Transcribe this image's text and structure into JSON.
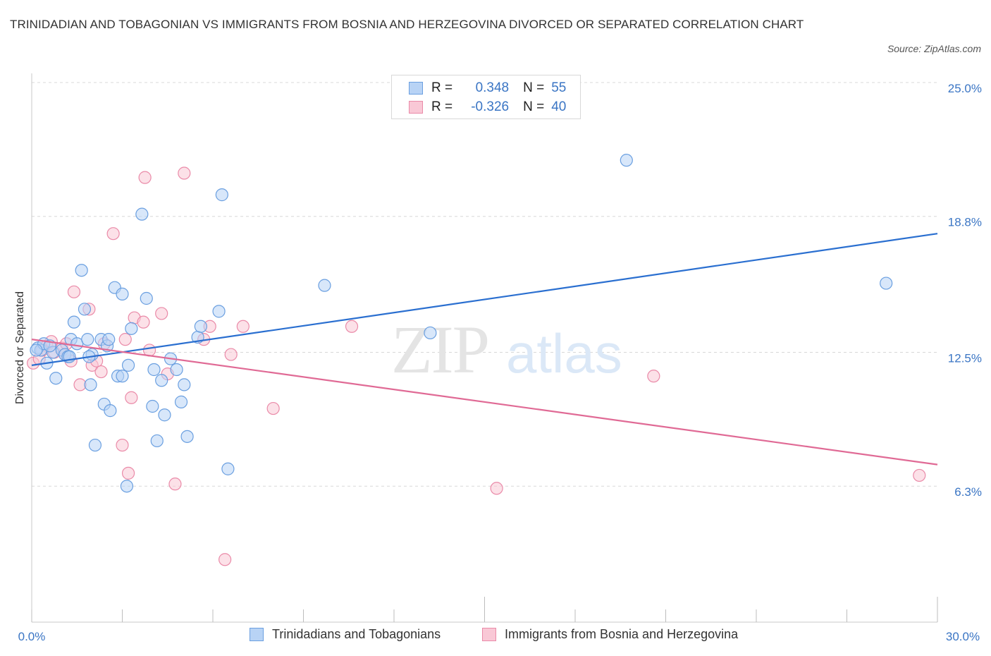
{
  "title": "TRINIDADIAN AND TOBAGONIAN VS IMMIGRANTS FROM BOSNIA AND HERZEGOVINA DIVORCED OR SEPARATED CORRELATION CHART",
  "source": "Source: ZipAtlas.com",
  "watermark": {
    "zip": "ZIP",
    "atlas": "atlas"
  },
  "legend": {
    "rows": [
      {
        "r_label": "R =",
        "r_value": "0.348",
        "n_label": "N =",
        "n_value": "55"
      },
      {
        "r_label": "R =",
        "r_value": "-0.326",
        "n_label": "N =",
        "n_value": "40"
      }
    ]
  },
  "bottom_legend": {
    "series1": "Trinidadians and Tobagonians",
    "series2": "Immigrants from Bosnia and Herzegovina"
  },
  "colors": {
    "blue_fill": "#b8d3f5",
    "blue_stroke": "#6a9fe0",
    "blue_line": "#2a6fd0",
    "pink_fill": "#f9c8d6",
    "pink_stroke": "#ea8aa8",
    "pink_line": "#e06a95",
    "tick_text": "#3a75c4",
    "grid": "#d8d8d8"
  },
  "chart_data": {
    "type": "scatter",
    "title": "TRINIDADIAN AND TOBAGONIAN VS IMMIGRANTS FROM BOSNIA AND HERZEGOVINA DIVORCED OR SEPARATED CORRELATION CHART",
    "xlabel": "",
    "ylabel": "Divorced or Separated",
    "xlim": [
      0,
      30
    ],
    "ylim": [
      0,
      25
    ],
    "x_tick_labels": [
      "0.0%",
      "30.0%"
    ],
    "y_ticks": [
      {
        "value": 25.0,
        "label": "25.0%"
      },
      {
        "value": 18.8,
        "label": "18.8%"
      },
      {
        "value": 12.5,
        "label": "12.5%"
      },
      {
        "value": 6.3,
        "label": "6.3%"
      }
    ],
    "grid": true,
    "legend_position": "top-center",
    "series": [
      {
        "name": "Trinidadians and Tobagonians",
        "color": "#6a9fe0",
        "trend": {
          "x": [
            0,
            30
          ],
          "y": [
            11.9,
            18.0
          ]
        },
        "points": [
          [
            0.2,
            12.7
          ],
          [
            0.3,
            12.6
          ],
          [
            0.4,
            12.9
          ],
          [
            0.5,
            12.0
          ],
          [
            0.7,
            12.5
          ],
          [
            0.8,
            11.3
          ],
          [
            1.0,
            12.6
          ],
          [
            1.1,
            12.4
          ],
          [
            1.2,
            12.3
          ],
          [
            1.3,
            13.1
          ],
          [
            1.4,
            13.9
          ],
          [
            1.5,
            12.9
          ],
          [
            1.65,
            16.3
          ],
          [
            1.75,
            14.5
          ],
          [
            1.85,
            13.1
          ],
          [
            1.95,
            11.0
          ],
          [
            2.0,
            12.4
          ],
          [
            2.1,
            8.2
          ],
          [
            2.3,
            13.1
          ],
          [
            2.4,
            10.1
          ],
          [
            2.5,
            12.8
          ],
          [
            2.6,
            9.8
          ],
          [
            2.75,
            15.5
          ],
          [
            2.85,
            11.4
          ],
          [
            3.0,
            15.2
          ],
          [
            3.2,
            11.9
          ],
          [
            3.15,
            6.3
          ],
          [
            3.3,
            13.6
          ],
          [
            3.65,
            18.9
          ],
          [
            3.8,
            15.0
          ],
          [
            4.0,
            10.0
          ],
          [
            4.05,
            11.7
          ],
          [
            4.15,
            8.4
          ],
          [
            4.3,
            11.2
          ],
          [
            4.4,
            9.6
          ],
          [
            4.6,
            12.2
          ],
          [
            4.8,
            11.7
          ],
          [
            4.95,
            10.2
          ],
          [
            5.05,
            11.0
          ],
          [
            5.15,
            8.6
          ],
          [
            5.5,
            13.2
          ],
          [
            5.6,
            13.7
          ],
          [
            6.2,
            14.4
          ],
          [
            6.3,
            19.8
          ],
          [
            6.5,
            7.1
          ],
          [
            9.7,
            15.6
          ],
          [
            13.2,
            13.4
          ],
          [
            19.7,
            21.4
          ],
          [
            28.3,
            15.7
          ],
          [
            0.15,
            12.6
          ],
          [
            0.6,
            12.8
          ],
          [
            1.9,
            12.3
          ],
          [
            3.0,
            11.4
          ],
          [
            2.55,
            13.1
          ],
          [
            1.25,
            12.3
          ]
        ]
      },
      {
        "name": "Immigrants from Bosnia and Herzegovina",
        "color": "#ea8aa8",
        "trend": {
          "x": [
            0,
            30
          ],
          "y": [
            13.1,
            7.3
          ]
        },
        "points": [
          [
            0.05,
            12.0
          ],
          [
            0.25,
            12.2
          ],
          [
            0.5,
            12.8
          ],
          [
            0.65,
            13.0
          ],
          [
            0.75,
            12.5
          ],
          [
            1.0,
            12.7
          ],
          [
            1.15,
            12.9
          ],
          [
            1.3,
            12.1
          ],
          [
            1.4,
            15.3
          ],
          [
            1.6,
            11.0
          ],
          [
            1.9,
            14.5
          ],
          [
            2.0,
            11.9
          ],
          [
            2.15,
            12.1
          ],
          [
            2.3,
            11.6
          ],
          [
            2.7,
            18.0
          ],
          [
            3.0,
            8.2
          ],
          [
            3.1,
            13.1
          ],
          [
            3.2,
            6.9
          ],
          [
            3.3,
            10.4
          ],
          [
            3.4,
            14.1
          ],
          [
            3.7,
            13.9
          ],
          [
            3.75,
            20.6
          ],
          [
            3.9,
            12.6
          ],
          [
            4.3,
            14.3
          ],
          [
            4.5,
            11.5
          ],
          [
            4.75,
            6.4
          ],
          [
            5.05,
            20.8
          ],
          [
            5.7,
            13.1
          ],
          [
            5.9,
            13.7
          ],
          [
            6.4,
            2.9
          ],
          [
            6.6,
            12.4
          ],
          [
            7.0,
            13.7
          ],
          [
            8.0,
            9.9
          ],
          [
            10.6,
            13.7
          ],
          [
            15.4,
            6.2
          ],
          [
            20.6,
            11.4
          ],
          [
            29.4,
            6.8
          ],
          [
            0.35,
            12.6
          ],
          [
            1.1,
            12.4
          ],
          [
            2.4,
            12.9
          ]
        ]
      }
    ]
  }
}
